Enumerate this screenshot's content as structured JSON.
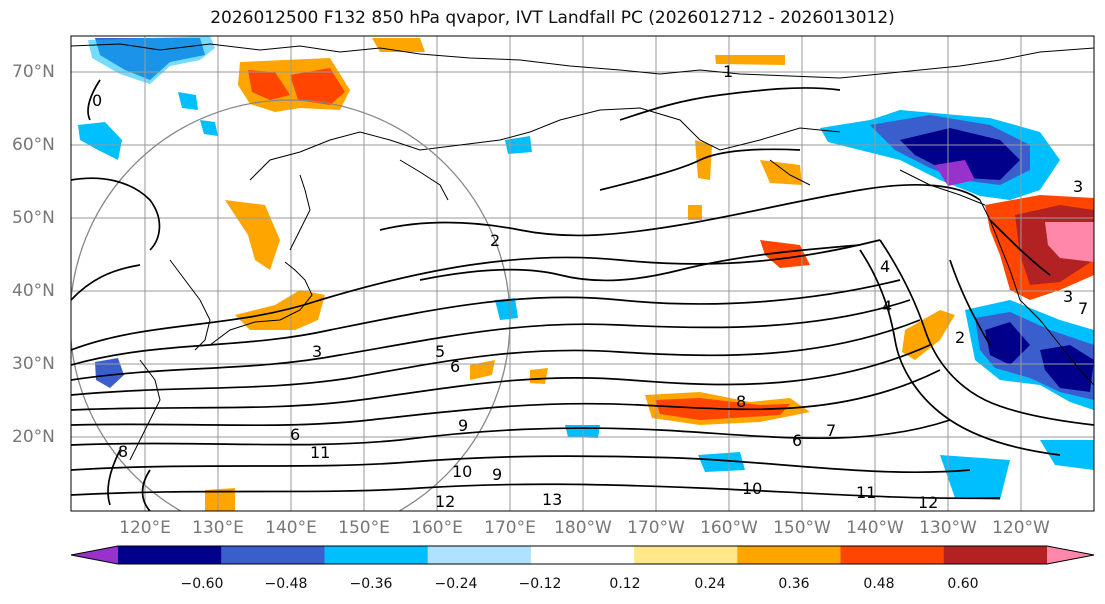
{
  "title": "2026012500 F132 850 hPa qvapor, IVT Landfall PC (2026012712 - 2026013012)",
  "lat_labels": [
    "70°N",
    "60°N",
    "50°N",
    "40°N",
    "30°N",
    "20°N"
  ],
  "lon_labels": [
    "120°E",
    "130°E",
    "140°E",
    "150°E",
    "160°E",
    "170°E",
    "180°W",
    "170°W",
    "160°W",
    "150°W",
    "140°W",
    "130°W",
    "120°W"
  ],
  "colorbar": {
    "ticks": [
      "−0.60",
      "−0.48",
      "−0.36",
      "−0.24",
      "−0.12",
      "0.12",
      "0.24",
      "0.36",
      "0.48",
      "0.60"
    ],
    "colors": [
      "#9932cc",
      "#00008b",
      "#3a5fcd",
      "#00bfff",
      "#b0e2ff",
      "#ffffff",
      "#ffe88a",
      "#ffa500",
      "#ff4500",
      "#b22222",
      "#ff88aa"
    ]
  },
  "contour_labels": [
    "0",
    "1",
    "2",
    "3",
    "4",
    "5",
    "6",
    "8",
    "9",
    "10",
    "11",
    "12",
    "13",
    "8",
    "6",
    "7",
    "11",
    "10",
    "12",
    "2",
    "3",
    "4",
    "3",
    "7",
    "6",
    "9"
  ],
  "colors": {
    "coastline": "#000000",
    "grid": "#999999",
    "circle": "#888888",
    "axis_label": "#777777"
  }
}
